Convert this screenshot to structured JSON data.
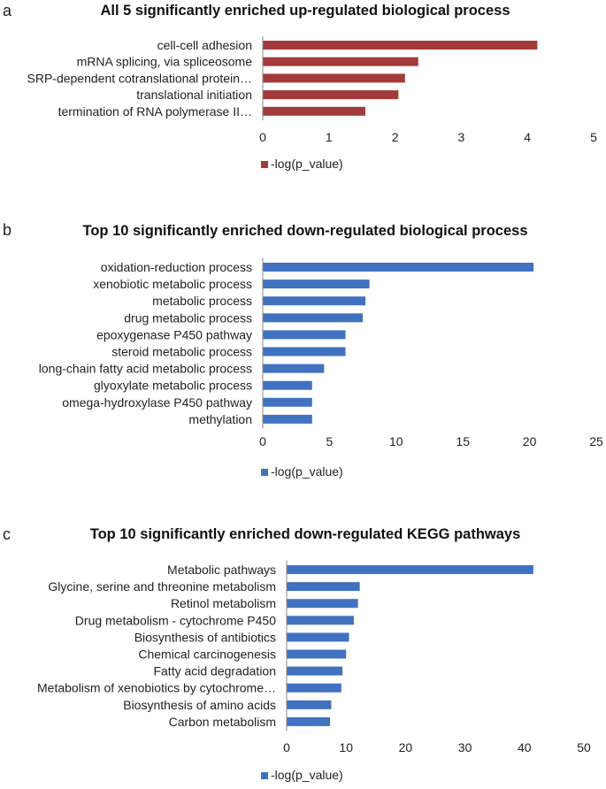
{
  "chart_data": [
    {
      "type": "bar",
      "orientation": "horizontal",
      "panel_letter": "a",
      "title": "All 5 significantly enriched up-regulated biological process",
      "categories": [
        "cell-cell adhesion",
        "mRNA splicing, via spliceosome",
        "SRP-dependent cotranslational protein…",
        "translational initiation",
        "termination of RNA polymerase II…"
      ],
      "series": [
        {
          "name": "-log(p_value)",
          "color": "#a33a3a",
          "values": [
            4.15,
            2.35,
            2.15,
            2.05,
            1.55
          ]
        }
      ],
      "xlim": [
        0,
        5
      ],
      "xticks": [
        "0",
        "1",
        "2",
        "3",
        "4",
        "5"
      ],
      "legend": "-log(p_value)"
    },
    {
      "type": "bar",
      "orientation": "horizontal",
      "panel_letter": "b",
      "title": "Top 10 significantly enriched down-regulated biological process",
      "categories": [
        "oxidation-reduction process",
        "xenobiotic metabolic process",
        "metabolic process",
        "drug metabolic process",
        "epoxygenase P450 pathway",
        "steroid metabolic process",
        "long-chain fatty acid metabolic process",
        "glyoxylate metabolic process",
        "omega-hydroxylase P450 pathway",
        "methylation"
      ],
      "series": [
        {
          "name": "-log(p_value)",
          "color": "#4172c0",
          "values": [
            20.3,
            8.0,
            7.7,
            7.5,
            6.2,
            6.2,
            4.6,
            3.7,
            3.7,
            3.7
          ]
        }
      ],
      "xlim": [
        0,
        25
      ],
      "xticks": [
        "0",
        "5",
        "10",
        "15",
        "20",
        "25"
      ],
      "legend": "-log(p_value)"
    },
    {
      "type": "bar",
      "orientation": "horizontal",
      "panel_letter": "c",
      "title": "Top 10 significantly enriched down-regulated KEGG pathways",
      "categories": [
        "Metabolic pathways",
        "Glycine, serine and threonine metabolism",
        "Retinol metabolism",
        "Drug metabolism - cytochrome P450",
        "Biosynthesis of antibiotics",
        "Chemical carcinogenesis",
        "Fatty acid degradation",
        "Metabolism of xenobiotics by cytochrome…",
        "Biosynthesis of amino acids",
        "Carbon metabolism"
      ],
      "series": [
        {
          "name": "-log(p_value)",
          "color": "#4172c0",
          "values": [
            41.5,
            12.3,
            12.0,
            11.3,
            10.5,
            10.0,
            9.4,
            9.2,
            7.5,
            7.3
          ]
        }
      ],
      "xlim": [
        0,
        50
      ],
      "xticks": [
        "0",
        "10",
        "20",
        "30",
        "40",
        "50"
      ],
      "legend": "-log(p_value)"
    }
  ]
}
